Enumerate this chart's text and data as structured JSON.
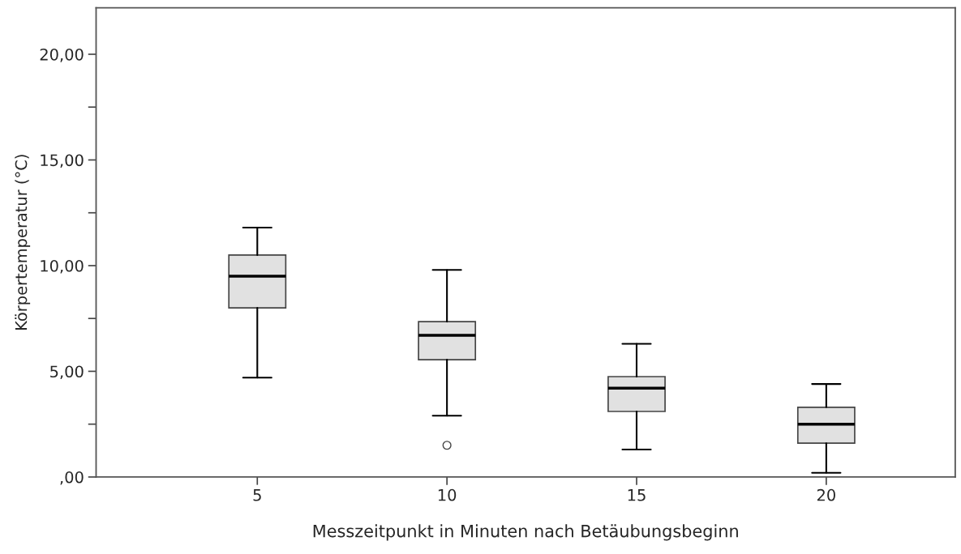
{
  "chart_data": {
    "type": "box",
    "xlabel": "Messzeitpunkt in Minuten nach Betäubungsbeginn",
    "ylabel": "Körpertemperatur (°C)",
    "categories": [
      "5",
      "10",
      "15",
      "20"
    ],
    "color": "#e1e1e1",
    "boxes": [
      {
        "low": 4.7,
        "q1": 8.0,
        "median": 9.5,
        "q3": 10.5,
        "high": 11.8
      },
      {
        "low": 2.9,
        "q1": 5.55,
        "median": 6.7,
        "q3": 7.35,
        "high": 9.8,
        "outliers": [
          1.5
        ]
      },
      {
        "low": 1.3,
        "q1": 3.1,
        "median": 4.2,
        "q3": 4.75,
        "high": 6.3
      },
      {
        "low": 0.2,
        "q1": 1.6,
        "median": 2.5,
        "q3": 3.3,
        "high": 4.4
      }
    ],
    "ylim": [
      0,
      22.2
    ],
    "yticks": [
      {
        "value": 0,
        "label": ",00"
      },
      {
        "value": 2.5,
        "label": null
      },
      {
        "value": 5,
        "label": "5,00"
      },
      {
        "value": 7.5,
        "label": null
      },
      {
        "value": 10,
        "label": "10,00"
      },
      {
        "value": 12.5,
        "label": null
      },
      {
        "value": 15,
        "label": "15,00"
      },
      {
        "value": 17.5,
        "label": null
      },
      {
        "value": 20,
        "label": "20,00"
      }
    ],
    "grid": false,
    "legend": false
  }
}
